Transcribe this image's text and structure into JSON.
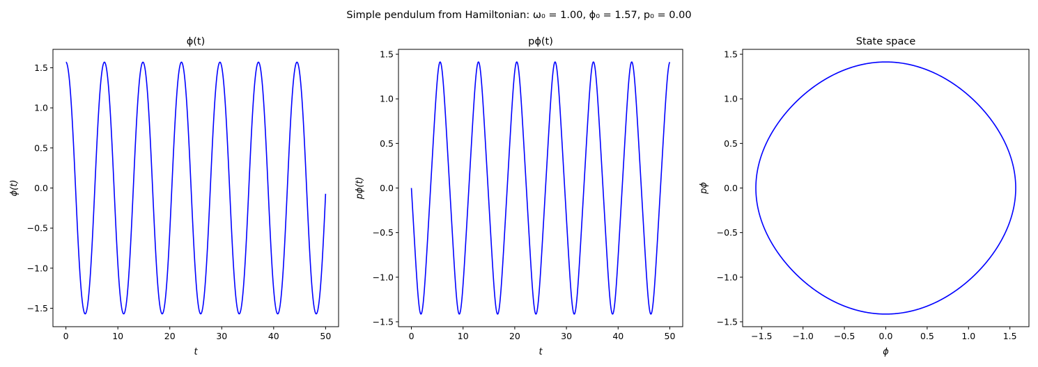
{
  "suptitle": "Simple pendulum from Hamiltonian:   ω₀ = 1.00,   ϕ₀ = 1.57,  p₀ = 0.00",
  "colors": {
    "line": "#0000ff",
    "axes": "#000000",
    "background": "#ffffff"
  },
  "chart_data": [
    {
      "type": "line",
      "title": "ϕ(t)",
      "xlabel": "t",
      "ylabel": "ϕ(t)",
      "xlim": [
        -2.5,
        52.5
      ],
      "ylim": [
        -1.73,
        1.73
      ],
      "xticks": [
        0,
        10,
        20,
        30,
        40,
        50
      ],
      "xtick_labels": [
        "0",
        "10",
        "20",
        "30",
        "40",
        "50"
      ],
      "yticks": [
        -1.5,
        -1.0,
        -0.5,
        0.0,
        0.5,
        1.0,
        1.5
      ],
      "ytick_labels": [
        "−1.5",
        "−1.0",
        "−0.5",
        "0.0",
        "0.5",
        "1.0",
        "1.5"
      ],
      "grid": false,
      "series": [
        {
          "color": "#0000ff",
          "function": "phi_vs_t",
          "t_range": [
            0,
            50
          ]
        }
      ]
    },
    {
      "type": "line",
      "title": "pϕ(t)",
      "xlabel": "t",
      "ylabel": "pϕ(t)",
      "xlim": [
        -2.5,
        52.5
      ],
      "ylim": [
        -1.555,
        1.555
      ],
      "xticks": [
        0,
        10,
        20,
        30,
        40,
        50
      ],
      "xtick_labels": [
        "0",
        "10",
        "20",
        "30",
        "40",
        "50"
      ],
      "yticks": [
        -1.5,
        -1.0,
        -0.5,
        0.0,
        0.5,
        1.0,
        1.5
      ],
      "ytick_labels": [
        "−1.5",
        "−1.0",
        "−0.5",
        "0.0",
        "0.5",
        "1.0",
        "1.5"
      ],
      "grid": false,
      "series": [
        {
          "color": "#0000ff",
          "function": "p_vs_t",
          "t_range": [
            0,
            50
          ]
        }
      ]
    },
    {
      "type": "line",
      "title": "State space",
      "xlabel": "ϕ",
      "ylabel": "pϕ",
      "xlim": [
        -1.73,
        1.73
      ],
      "ylim": [
        -1.555,
        1.555
      ],
      "xticks": [
        -1.5,
        -1.0,
        -0.5,
        0.0,
        0.5,
        1.0,
        1.5
      ],
      "xtick_labels": [
        "−1.5",
        "−1.0",
        "−0.5",
        "0.0",
        "0.5",
        "1.0",
        "1.5"
      ],
      "yticks": [
        -1.5,
        -1.0,
        -0.5,
        0.0,
        0.5,
        1.0,
        1.5
      ],
      "ytick_labels": [
        "−1.5",
        "−1.0",
        "−0.5",
        "0.0",
        "0.5",
        "1.0",
        "1.5"
      ],
      "grid": false,
      "series": [
        {
          "color": "#0000ff",
          "function": "phase_portrait",
          "t_range": [
            0,
            50
          ]
        }
      ]
    }
  ],
  "model": {
    "omega0": 1.0,
    "phi0": 1.57,
    "p0": 0.0
  }
}
